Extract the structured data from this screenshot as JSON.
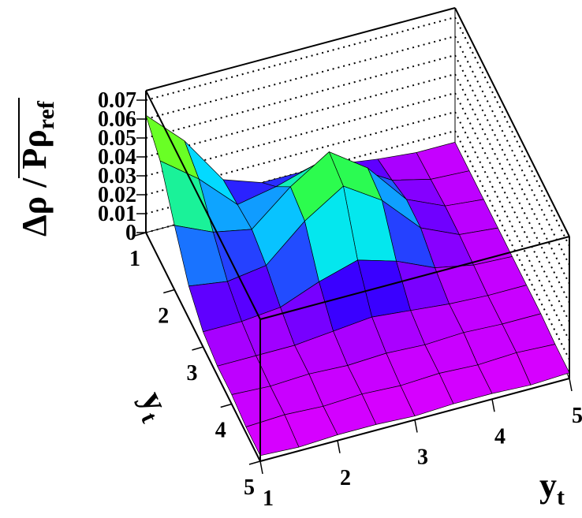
{
  "chart_data": {
    "type": "surface",
    "x_label": "y",
    "x_label_sub": "t",
    "y_label": "y",
    "y_label_sub": "t",
    "z_label": "Δρ / Pρ",
    "z_label_sub": "ref",
    "x": [
      1,
      1.5,
      2,
      2.5,
      3,
      3.5,
      4,
      4.5,
      5
    ],
    "y": [
      1,
      1.5,
      2,
      2.5,
      3,
      3.5,
      4,
      4.5,
      5
    ],
    "z": [
      [
        0.062,
        0.043,
        0.017,
        0.01,
        0.01,
        0.009,
        0.006,
        0.004,
        0.004
      ],
      [
        0.053,
        0.038,
        0.019,
        0.023,
        0.029,
        0.022,
        0.01,
        0.005,
        0.004
      ],
      [
        0.034,
        0.025,
        0.021,
        0.038,
        0.051,
        0.037,
        0.015,
        0.006,
        0.004
      ],
      [
        0.017,
        0.014,
        0.017,
        0.035,
        0.048,
        0.035,
        0.015,
        0.006,
        0.004
      ],
      [
        0.008,
        0.008,
        0.01,
        0.018,
        0.024,
        0.018,
        0.009,
        0.005,
        0.004
      ],
      [
        0.005,
        0.005,
        0.005,
        0.007,
        0.009,
        0.007,
        0.005,
        0.004,
        0.004
      ],
      [
        0.005,
        0.004,
        0.005,
        0.004,
        0.005,
        0.004,
        0.005,
        0.004,
        0.004
      ],
      [
        0.003,
        0.004,
        0.003,
        0.004,
        0.003,
        0.004,
        0.003,
        0.004,
        0.003
      ],
      [
        0.003,
        0.002,
        0.003,
        0.003,
        0.002,
        0.003,
        0.003,
        0.002,
        0.003
      ]
    ],
    "xlim": [
      1,
      5
    ],
    "ylim": [
      1,
      5
    ],
    "zlim": [
      0,
      0.075
    ],
    "xticks": [
      1,
      2,
      3,
      4,
      5
    ],
    "yticks": [
      1,
      2,
      3,
      4,
      5
    ],
    "zticks": [
      0,
      0.01,
      0.02,
      0.03,
      0.04,
      0.05,
      0.06,
      0.07
    ],
    "palette": [
      "#ff00ff",
      "#3300ff",
      "#00e5ff",
      "#33ff33",
      "#ffff00",
      "#ff2200"
    ],
    "grid": true
  }
}
